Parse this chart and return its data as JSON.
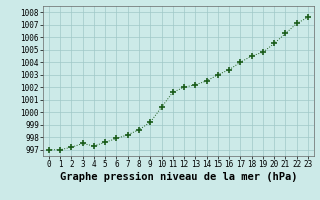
{
  "x": [
    0,
    1,
    2,
    3,
    4,
    5,
    6,
    7,
    8,
    9,
    10,
    11,
    12,
    13,
    14,
    15,
    16,
    17,
    18,
    19,
    20,
    21,
    22,
    23
  ],
  "y": [
    997.0,
    997.0,
    997.2,
    997.5,
    997.3,
    997.6,
    997.9,
    998.2,
    998.6,
    999.2,
    1000.4,
    1001.6,
    1002.0,
    1002.2,
    1002.5,
    1003.0,
    1003.4,
    1004.0,
    1004.5,
    1004.8,
    1005.5,
    1006.3,
    1007.1,
    1007.6
  ],
  "xlabel": "Graphe pression niveau de la mer (hPa)",
  "ylim": [
    996.5,
    1008.5
  ],
  "xlim": [
    -0.5,
    23.5
  ],
  "yticks": [
    997,
    998,
    999,
    1000,
    1001,
    1002,
    1003,
    1004,
    1005,
    1006,
    1007,
    1008
  ],
  "xticks": [
    0,
    1,
    2,
    3,
    4,
    5,
    6,
    7,
    8,
    9,
    10,
    11,
    12,
    13,
    14,
    15,
    16,
    17,
    18,
    19,
    20,
    21,
    22,
    23
  ],
  "line_color": "#1a5c1a",
  "marker_color": "#1a5c1a",
  "bg_color": "#cceae8",
  "grid_color": "#a0c8c8",
  "xlabel_fontsize": 7.5,
  "tick_fontsize": 5.5
}
